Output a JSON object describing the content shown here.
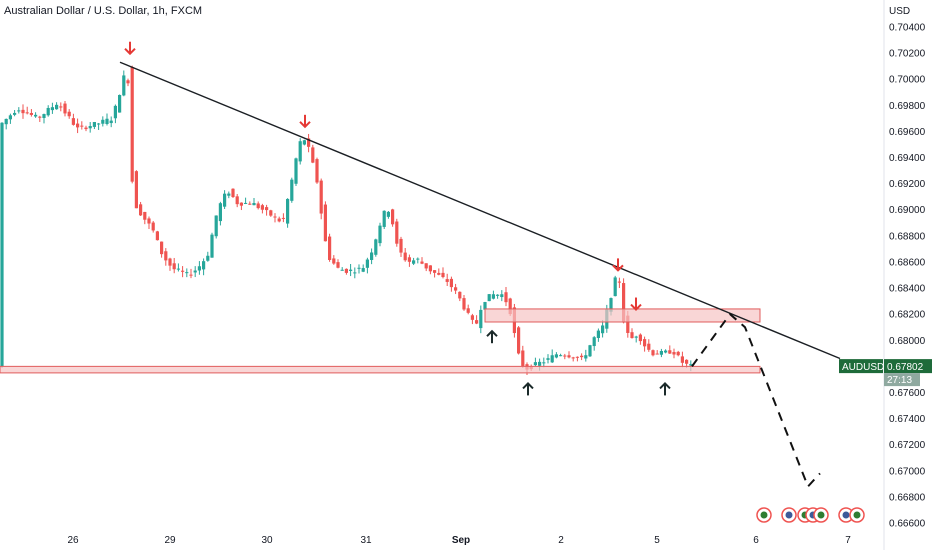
{
  "chart_data": {
    "type": "candlestick",
    "title": "Australian Dollar / U.S. Dollar, 1h, FXCM",
    "currency_label": "USD",
    "symbol": "AUDUSD",
    "last_price": "0.67802",
    "countdown": "27:13",
    "price_ticks": [
      "0.70400",
      "0.70200",
      "0.70000",
      "0.69800",
      "0.69600",
      "0.69400",
      "0.69200",
      "0.69000",
      "0.68800",
      "0.68600",
      "0.68400",
      "0.68200",
      "0.68000",
      "0.67800",
      "0.67600",
      "0.67400",
      "0.67200",
      "0.67000",
      "0.66800",
      "0.66600"
    ],
    "ylim": [
      0.666,
      0.7045
    ],
    "x_ticks": [
      {
        "label": "26",
        "bold": false
      },
      {
        "label": "29",
        "bold": false
      },
      {
        "label": "30",
        "bold": false
      },
      {
        "label": "31",
        "bold": false
      },
      {
        "label": "Sep",
        "bold": true
      },
      {
        "label": "2",
        "bold": false
      },
      {
        "label": "5",
        "bold": false
      },
      {
        "label": "6",
        "bold": false
      },
      {
        "label": "7",
        "bold": false
      }
    ],
    "price_path": [
      [
        0,
        0.6963
      ],
      [
        20,
        0.6978
      ],
      [
        40,
        0.697
      ],
      [
        60,
        0.6982
      ],
      [
        80,
        0.6962
      ],
      [
        100,
        0.6966
      ],
      [
        115,
        0.697
      ],
      [
        124,
        0.6995
      ],
      [
        130,
        0.7012
      ],
      [
        133,
        0.6935
      ],
      [
        137,
        0.6905
      ],
      [
        145,
        0.6895
      ],
      [
        155,
        0.6885
      ],
      [
        165,
        0.6865
      ],
      [
        175,
        0.6855
      ],
      [
        190,
        0.685
      ],
      [
        200,
        0.6855
      ],
      [
        210,
        0.6865
      ],
      [
        220,
        0.69
      ],
      [
        230,
        0.6915
      ],
      [
        240,
        0.6905
      ],
      [
        255,
        0.6905
      ],
      [
        265,
        0.69
      ],
      [
        275,
        0.6895
      ],
      [
        285,
        0.689
      ],
      [
        295,
        0.6925
      ],
      [
        300,
        0.6945
      ],
      [
        305,
        0.6957
      ],
      [
        312,
        0.6945
      ],
      [
        320,
        0.692
      ],
      [
        325,
        0.689
      ],
      [
        330,
        0.6865
      ],
      [
        340,
        0.6855
      ],
      [
        350,
        0.6853
      ],
      [
        365,
        0.6855
      ],
      [
        375,
        0.687
      ],
      [
        385,
        0.6895
      ],
      [
        390,
        0.6902
      ],
      [
        395,
        0.689
      ],
      [
        400,
        0.687
      ],
      [
        410,
        0.686
      ],
      [
        420,
        0.6862
      ],
      [
        430,
        0.6855
      ],
      [
        440,
        0.685
      ],
      [
        450,
        0.6845
      ],
      [
        460,
        0.6835
      ],
      [
        470,
        0.682
      ],
      [
        478,
        0.681
      ],
      [
        485,
        0.683
      ],
      [
        495,
        0.6835
      ],
      [
        505,
        0.6835
      ],
      [
        512,
        0.6825
      ],
      [
        518,
        0.68
      ],
      [
        522,
        0.6785
      ],
      [
        528,
        0.6778
      ],
      [
        540,
        0.6782
      ],
      [
        550,
        0.6785
      ],
      [
        560,
        0.679
      ],
      [
        575,
        0.6788
      ],
      [
        585,
        0.6785
      ],
      [
        595,
        0.68
      ],
      [
        605,
        0.681
      ],
      [
        612,
        0.683
      ],
      [
        618,
        0.6847
      ],
      [
        622,
        0.6845
      ],
      [
        626,
        0.6815
      ],
      [
        632,
        0.68
      ],
      [
        640,
        0.6805
      ],
      [
        648,
        0.6795
      ],
      [
        655,
        0.679
      ],
      [
        665,
        0.679
      ],
      [
        675,
        0.6792
      ],
      [
        685,
        0.6783
      ],
      [
        692,
        0.678
      ]
    ],
    "annotations": {
      "trendline": {
        "from": [
          120,
          0.7013
        ],
        "to": [
          840,
          0.6786
        ]
      },
      "support_zone": {
        "y_low": 0.6775,
        "y_high": 0.678,
        "x_to": 760
      },
      "resistance_zone": {
        "y_low": 0.6814,
        "y_high": 0.6824,
        "x_from": 485,
        "x_to": 760
      },
      "down_arrows": [
        [
          130,
          0.7018
        ],
        [
          305,
          0.6962
        ],
        [
          618,
          0.6852
        ],
        [
          636,
          0.6822
        ]
      ],
      "up_arrows": [
        [
          492,
          0.681
        ],
        [
          528,
          0.677
        ],
        [
          665,
          0.677
        ]
      ],
      "projection": [
        [
          692,
          0.678
        ],
        [
          730,
          0.682
        ],
        [
          745,
          0.681
        ],
        [
          808,
          0.6688
        ],
        [
          820,
          0.6698
        ]
      ]
    }
  },
  "colors": {
    "up": "#26a69a",
    "down": "#ef5350",
    "zone_fill": "#f7c5c5",
    "zone_stroke": "#e05c5c",
    "arrow_red": "#e53935",
    "arrow_dark": "#1b2a2a",
    "badge": "#1e6b3a",
    "countdown": "#8fa9a0"
  }
}
